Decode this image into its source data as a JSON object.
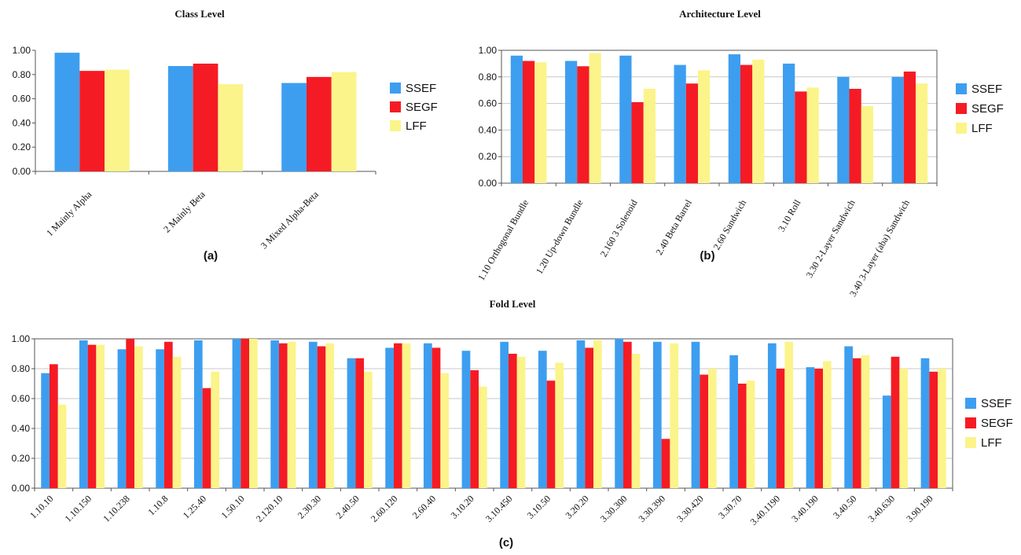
{
  "colors": {
    "SSEF": "#3d9ef0",
    "SEGF": "#f51b24",
    "LFF": "#fbf48a",
    "axis": "#555555",
    "grid": "#c8c8c8"
  },
  "chart_data": [
    {
      "type": "bar",
      "title": "Class Level",
      "panel_label": "(a)",
      "categories": [
        "1 Mainly Alpha",
        "2 Mainly Beta",
        "3 Mixed Alpha-Beta"
      ],
      "series": [
        {
          "name": "SSEF",
          "values": [
            0.98,
            0.87,
            0.73
          ]
        },
        {
          "name": "SEGF",
          "values": [
            0.83,
            0.89,
            0.78
          ]
        },
        {
          "name": "LFF",
          "values": [
            0.84,
            0.72,
            0.82
          ]
        }
      ],
      "ylim": [
        0,
        1.0
      ],
      "yticks": [
        "0.00",
        "0.20",
        "0.40",
        "0.60",
        "0.80",
        "1.00"
      ],
      "legend": "right",
      "grid": false
    },
    {
      "type": "bar",
      "title": "Architecture Level",
      "panel_label": "(b)",
      "categories": [
        "1.10 Orthogonal Bundle",
        "1.20 Up-down Bundle",
        "2.160 3 Solenoid",
        "2.40 Beta Barrel",
        "2.60 Sandwich",
        "3.10 Roll",
        "3.30 2-Layer Sandwich",
        "3.40 3-Layer (aba) Sandwich"
      ],
      "series": [
        {
          "name": "SSEF",
          "values": [
            0.96,
            0.92,
            0.96,
            0.89,
            0.97,
            0.9,
            0.8,
            0.8
          ]
        },
        {
          "name": "SEGF",
          "values": [
            0.92,
            0.88,
            0.61,
            0.75,
            0.89,
            0.69,
            0.71,
            0.84
          ]
        },
        {
          "name": "LFF",
          "values": [
            0.91,
            0.98,
            0.71,
            0.85,
            0.93,
            0.72,
            0.58,
            0.75
          ]
        }
      ],
      "ylim": [
        0,
        1.0
      ],
      "yticks": [
        "0.00",
        "0.20",
        "0.40",
        "0.60",
        "0.80",
        "1.00"
      ],
      "legend": "right",
      "grid": true
    },
    {
      "type": "bar",
      "title": "Fold Level",
      "panel_label": "(c)",
      "categories": [
        "1.10.10",
        "1.10.150",
        "1.10.238",
        "1.10.8",
        "1.25.40",
        "1.50.10",
        "2.120.10",
        "2.30.30",
        "2.40.50",
        "2.60.120",
        "2.60.40",
        "3.10.20",
        "3.10.450",
        "3.10.50",
        "3.20.20",
        "3.30.300",
        "3.30.390",
        "3.30.420",
        "3.30.70",
        "3.40.1190",
        "3.40.190",
        "3.40.50",
        "3.40.630",
        "3.90.190"
      ],
      "series": [
        {
          "name": "SSEF",
          "values": [
            0.77,
            0.99,
            0.93,
            0.93,
            0.99,
            1.0,
            0.99,
            0.98,
            0.87,
            0.94,
            0.97,
            0.92,
            0.98,
            0.92,
            0.99,
            1.0,
            0.98,
            0.98,
            0.89,
            0.97,
            0.81,
            0.95,
            0.62,
            0.87
          ]
        },
        {
          "name": "SEGF",
          "values": [
            0.83,
            0.96,
            1.0,
            0.98,
            0.67,
            1.0,
            0.97,
            0.95,
            0.87,
            0.97,
            0.94,
            0.79,
            0.9,
            0.72,
            0.94,
            0.98,
            0.33,
            0.76,
            0.7,
            0.8,
            0.8,
            0.87,
            0.88,
            0.78
          ]
        },
        {
          "name": "LFF",
          "values": [
            0.56,
            0.96,
            0.95,
            0.88,
            0.78,
            1.0,
            0.98,
            0.97,
            0.78,
            0.97,
            0.77,
            0.68,
            0.88,
            0.84,
            0.99,
            0.9,
            0.97,
            0.8,
            0.72,
            0.98,
            0.85,
            0.89,
            0.8,
            0.8
          ]
        }
      ],
      "ylim": [
        0,
        1.0
      ],
      "yticks": [
        "0.00",
        "0.20",
        "0.40",
        "0.60",
        "0.80",
        "1.00"
      ],
      "legend": "right",
      "grid": true
    }
  ]
}
